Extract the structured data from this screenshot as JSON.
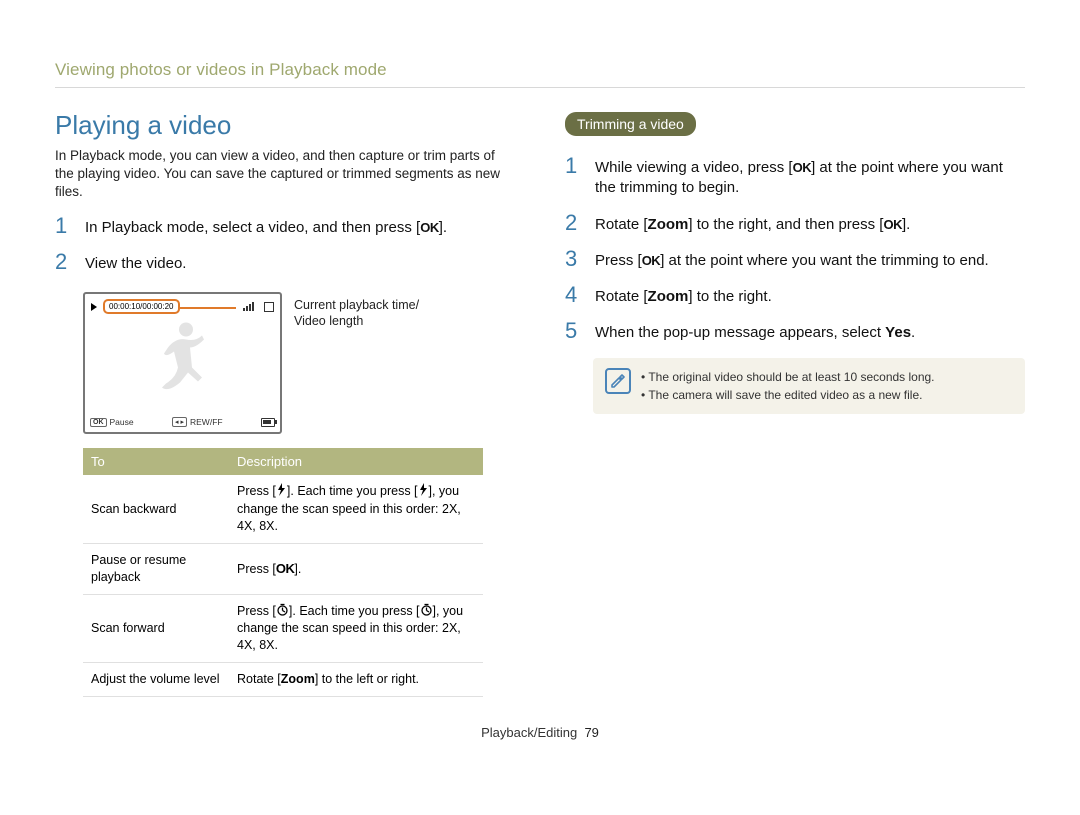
{
  "colors": {
    "accent_blue": "#3a7aa8",
    "olive": "#b2b680",
    "pill": "#6b6f45",
    "callout_orange": "#e07a2a",
    "note_bg": "#f4f2e9",
    "rule": "#d8d8d8"
  },
  "breadcrumb": "Viewing photos or videos in Playback mode",
  "left": {
    "heading": "Playing a video",
    "intro": "In Playback mode, you can view a video, and then capture or trim parts of the playing video. You can save the captured or trimmed segments as new files.",
    "steps": [
      {
        "n": "1",
        "pre": "In Playback mode, select a video, and then press [",
        "ok": "OK",
        "post": "]."
      },
      {
        "n": "2",
        "pre": "View the video.",
        "ok": "",
        "post": ""
      }
    ],
    "diagram": {
      "time_text": "00:00:10/00:00:20",
      "bottom_left_ok": "OK",
      "pause_label": "Pause",
      "rew_label": "REW/FF",
      "callout": "Current playback time/\nVideo length"
    },
    "table": {
      "headers": [
        "To",
        "Description"
      ],
      "rows": [
        {
          "to": "Scan backward",
          "desc_pre": "Press [",
          "icon": "flash-left",
          "desc_mid": "]. Each time you press [",
          "icon2": "flash-left",
          "desc_post": "], you change the scan speed in this order: 2X, 4X, 8X."
        },
        {
          "to": "Pause or resume playback",
          "desc_pre": "Press [",
          "icon": "ok",
          "desc_mid": "",
          "icon2": "",
          "desc_post": "]."
        },
        {
          "to": "Scan forward",
          "desc_pre": "Press [",
          "icon": "timer",
          "desc_mid": "]. Each time you press [",
          "icon2": "timer",
          "desc_post": "], you change the scan speed in this order: 2X, 4X, 8X."
        },
        {
          "to": "Adjust the volume level",
          "desc_pre": "Rotate [",
          "bold": "Zoom",
          "desc_post": "] to the left or right."
        }
      ]
    }
  },
  "right": {
    "pill": "Trimming a video",
    "steps": [
      {
        "n": "1",
        "parts": [
          "While viewing a video, press [",
          {
            "ok": true
          },
          "] at the point where you want the trimming to begin."
        ]
      },
      {
        "n": "2",
        "parts": [
          "Rotate [",
          {
            "bold": "Zoom"
          },
          "] to the right, and then press [",
          {
            "ok": true
          },
          "]."
        ]
      },
      {
        "n": "3",
        "parts": [
          "Press [",
          {
            "ok": true
          },
          "] at the point where you want the trimming to end."
        ]
      },
      {
        "n": "4",
        "parts": [
          "Rotate [",
          {
            "bold": "Zoom"
          },
          "] to the right."
        ]
      },
      {
        "n": "5",
        "parts": [
          "When the pop-up message appears, select ",
          {
            "bold": "Yes"
          },
          "."
        ]
      }
    ],
    "note": [
      "The original video should be at least 10 seconds long.",
      "The camera will save the edited video as a new file."
    ]
  },
  "footer": {
    "section": "Playback/Editing",
    "page": "79"
  }
}
